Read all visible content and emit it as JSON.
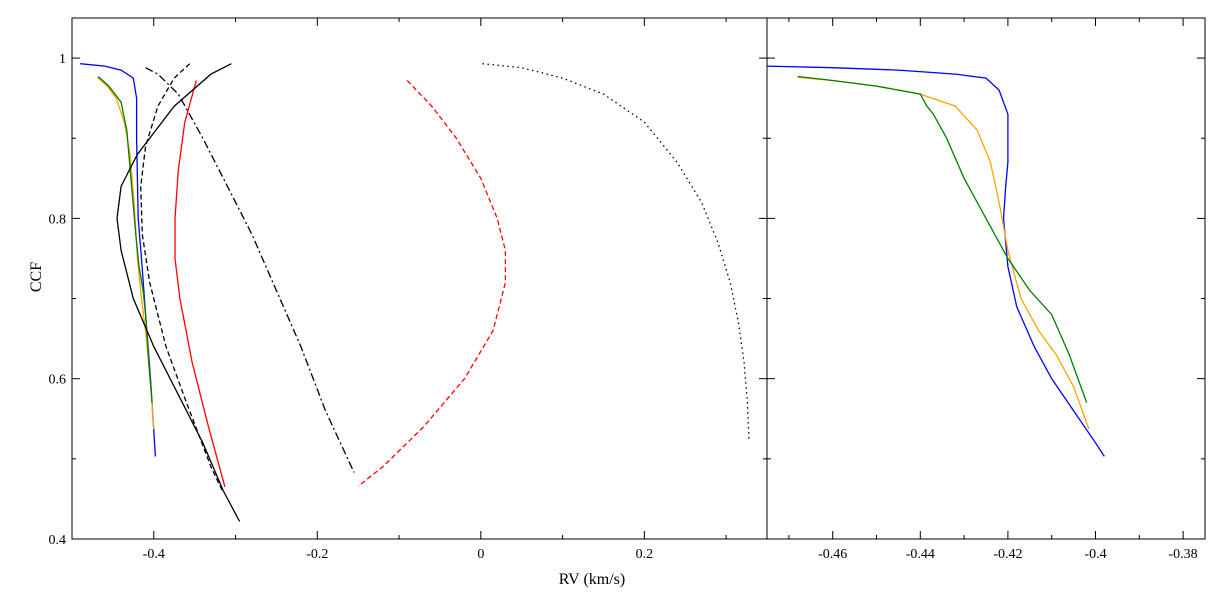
{
  "chart_data": [
    {
      "type": "line",
      "panel": "left",
      "xlabel": "RV (km/s)",
      "ylabel": "CCF",
      "xlim": [
        -0.5,
        0.35
      ],
      "ylim": [
        0.4,
        1.05
      ],
      "xticks": [
        -0.4,
        -0.2,
        0,
        0.2
      ],
      "xtick_labels": [
        "-0.4",
        "-0.2",
        "0",
        "0.2"
      ],
      "yticks": [
        0.4,
        0.6,
        0.8,
        1.0
      ],
      "ytick_labels": [
        "0.4",
        "0.6",
        "0.8",
        "1"
      ],
      "grid": false,
      "series": [
        {
          "color": "#0000ff",
          "style": "solid",
          "x": [
            -0.49,
            -0.46,
            -0.44,
            -0.425,
            -0.421,
            -0.421,
            -0.419,
            -0.415,
            -0.41,
            -0.404,
            -0.398
          ],
          "y": [
            0.993,
            0.99,
            0.985,
            0.975,
            0.95,
            0.9,
            0.8,
            0.75,
            0.68,
            0.6,
            0.503
          ]
        },
        {
          "color": "#ffa500",
          "style": "solid",
          "x": [
            -0.469,
            -0.457,
            -0.446,
            -0.436,
            -0.429,
            -0.424,
            -0.42,
            -0.415,
            -0.409,
            -0.403,
            -0.4
          ],
          "y": [
            0.976,
            0.965,
            0.95,
            0.92,
            0.88,
            0.82,
            0.75,
            0.7,
            0.65,
            0.58,
            0.537
          ]
        },
        {
          "color": "#008000",
          "style": "solid",
          "x": [
            -0.468,
            -0.455,
            -0.44,
            -0.437,
            -0.433,
            -0.428,
            -0.422,
            -0.418,
            -0.413,
            -0.41,
            -0.406,
            -0.402
          ],
          "y": [
            0.977,
            0.965,
            0.945,
            0.93,
            0.91,
            0.85,
            0.78,
            0.74,
            0.71,
            0.68,
            0.62,
            0.57
          ]
        },
        {
          "color": "#ff0000",
          "style": "solid",
          "x": [
            -0.348,
            -0.362,
            -0.37,
            -0.374,
            -0.374,
            -0.368,
            -0.353,
            -0.333,
            -0.313
          ],
          "y": [
            0.972,
            0.92,
            0.86,
            0.8,
            0.75,
            0.7,
            0.62,
            0.54,
            0.465
          ]
        },
        {
          "color": "#000000",
          "style": "solid",
          "x": [
            -0.305,
            -0.33,
            -0.375,
            -0.42,
            -0.44,
            -0.445,
            -0.44,
            -0.425,
            -0.4,
            -0.37,
            -0.34,
            -0.315,
            -0.295
          ],
          "y": [
            0.993,
            0.98,
            0.94,
            0.88,
            0.84,
            0.8,
            0.76,
            0.7,
            0.64,
            0.58,
            0.52,
            0.46,
            0.422
          ]
        },
        {
          "color": "#000000",
          "style": "dashed",
          "x": [
            -0.356,
            -0.375,
            -0.395,
            -0.41,
            -0.416,
            -0.414,
            -0.405,
            -0.385,
            -0.36,
            -0.33,
            -0.316
          ],
          "y": [
            0.993,
            0.975,
            0.94,
            0.89,
            0.84,
            0.78,
            0.72,
            0.64,
            0.57,
            0.49,
            0.46
          ]
        },
        {
          "color": "#000000",
          "style": "dashdot",
          "x": [
            -0.41,
            -0.395,
            -0.37,
            -0.34,
            -0.31,
            -0.28,
            -0.25,
            -0.22,
            -0.19,
            -0.155
          ],
          "y": [
            0.988,
            0.98,
            0.955,
            0.9,
            0.84,
            0.78,
            0.71,
            0.64,
            0.56,
            0.483
          ]
        },
        {
          "color": "#ff0000",
          "style": "dashed",
          "x": [
            -0.09,
            -0.06,
            -0.03,
            0.0,
            0.02,
            0.03,
            0.03,
            0.015,
            -0.02,
            -0.07,
            -0.12,
            -0.15
          ],
          "y": [
            0.972,
            0.94,
            0.9,
            0.85,
            0.8,
            0.76,
            0.72,
            0.66,
            0.6,
            0.54,
            0.49,
            0.466
          ]
        },
        {
          "color": "#000000",
          "style": "dotted",
          "x": [
            0.002,
            0.05,
            0.1,
            0.15,
            0.2,
            0.24,
            0.27,
            0.29,
            0.305,
            0.315,
            0.322,
            0.326,
            0.328
          ],
          "y": [
            0.993,
            0.988,
            0.975,
            0.955,
            0.92,
            0.87,
            0.82,
            0.77,
            0.72,
            0.67,
            0.62,
            0.57,
            0.524
          ]
        }
      ]
    },
    {
      "type": "line",
      "panel": "right",
      "xlabel": "",
      "ylabel": "",
      "xlim": [
        -0.475,
        -0.375
      ],
      "ylim": [
        0.4,
        1.05
      ],
      "xticks": [
        -0.46,
        -0.44,
        -0.42,
        -0.4,
        -0.38
      ],
      "xtick_labels": [
        "-0.46",
        "-0.44",
        "-0.42",
        "-0.4",
        "-0.38"
      ],
      "yticks": [
        0.4,
        0.6,
        0.8,
        1.0
      ],
      "grid": false,
      "series": [
        {
          "color": "#0000ff",
          "style": "solid",
          "x": [
            -0.475,
            -0.46,
            -0.445,
            -0.432,
            -0.425,
            -0.422,
            -0.42,
            -0.42,
            -0.42,
            -0.4205,
            -0.421,
            -0.42,
            -0.418,
            -0.414,
            -0.41,
            -0.405,
            -0.4,
            -0.398
          ],
          "y": [
            0.99,
            0.988,
            0.985,
            0.98,
            0.975,
            0.96,
            0.93,
            0.9,
            0.87,
            0.84,
            0.8,
            0.74,
            0.69,
            0.64,
            0.6,
            0.56,
            0.52,
            0.503
          ]
        },
        {
          "color": "#ffa500",
          "style": "solid",
          "x": [
            -0.468,
            -0.46,
            -0.45,
            -0.44,
            -0.432,
            -0.427,
            -0.424,
            -0.422,
            -0.42,
            -0.417,
            -0.413,
            -0.409,
            -0.405,
            -0.4015
          ],
          "y": [
            0.976,
            0.972,
            0.965,
            0.955,
            0.94,
            0.91,
            0.87,
            0.82,
            0.76,
            0.7,
            0.66,
            0.63,
            0.59,
            0.537
          ]
        },
        {
          "color": "#008000",
          "style": "solid",
          "x": [
            -0.468,
            -0.46,
            -0.45,
            -0.44,
            -0.4385,
            -0.437,
            -0.434,
            -0.43,
            -0.425,
            -0.42,
            -0.415,
            -0.41,
            -0.406,
            -0.402
          ],
          "y": [
            0.977,
            0.972,
            0.965,
            0.955,
            0.94,
            0.93,
            0.9,
            0.85,
            0.8,
            0.75,
            0.71,
            0.68,
            0.63,
            0.57
          ]
        }
      ]
    }
  ]
}
